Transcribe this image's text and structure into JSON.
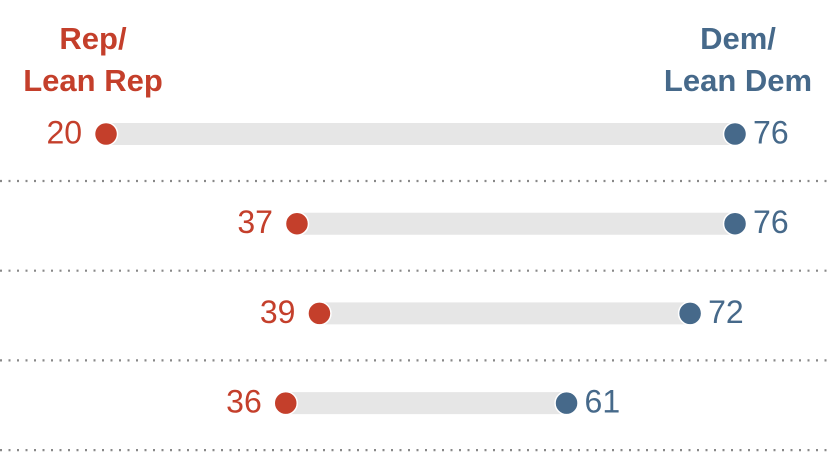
{
  "chart_data": {
    "type": "dumbbell",
    "categories": [
      null,
      null,
      null,
      null
    ],
    "series": [
      {
        "name": "Rep/\nLean Rep",
        "color": "#c43f2b",
        "values": [
          20,
          37,
          39,
          36
        ]
      },
      {
        "name": "Dem/\nLean Dem",
        "color": "#46698a",
        "values": [
          76,
          76,
          72,
          61
        ]
      }
    ]
  }
}
